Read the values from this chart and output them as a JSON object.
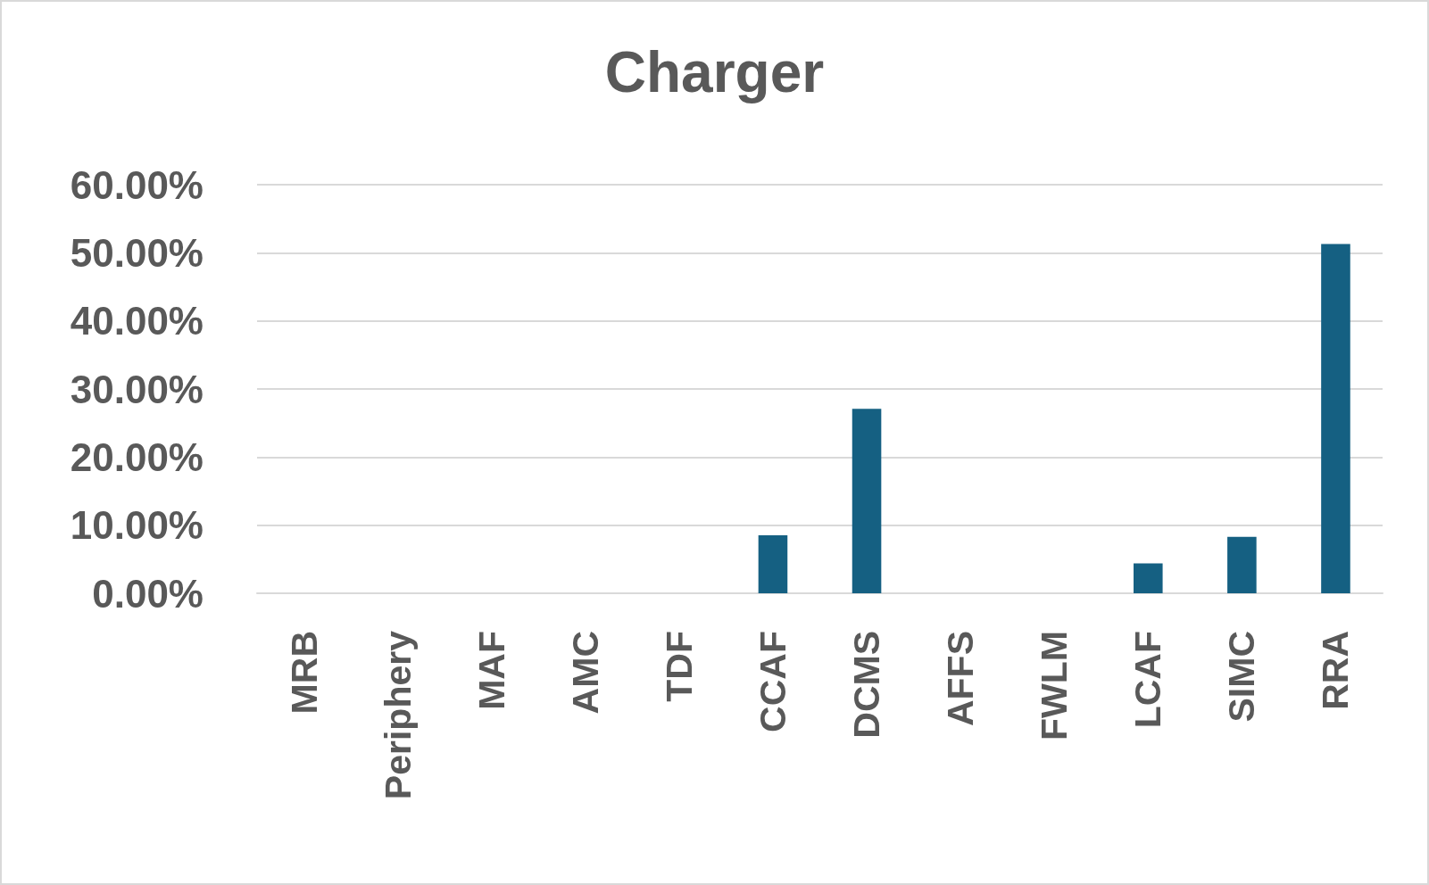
{
  "chart_data": {
    "type": "bar",
    "title": "Charger",
    "categories": [
      "MRB",
      "Periphery",
      "MAF",
      "AMC",
      "TDF",
      "CCAF",
      "DCMS",
      "AFFS",
      "FWLM",
      "LCAF",
      "SIMC",
      "RRA"
    ],
    "values": [
      0,
      0,
      0,
      0,
      0,
      8.5,
      27.1,
      0,
      0,
      4.4,
      8.3,
      51.3
    ],
    "color": "#156082",
    "ylim": [
      0,
      60
    ],
    "yticks": [
      {
        "value": 0,
        "label": "0.00%"
      },
      {
        "value": 10,
        "label": "10.00%"
      },
      {
        "value": 20,
        "label": "20.00%"
      },
      {
        "value": 30,
        "label": "30.00%"
      },
      {
        "value": 40,
        "label": "40.00%"
      },
      {
        "value": 50,
        "label": "50.00%"
      },
      {
        "value": 60,
        "label": "60.00%"
      }
    ],
    "grid": "y"
  }
}
